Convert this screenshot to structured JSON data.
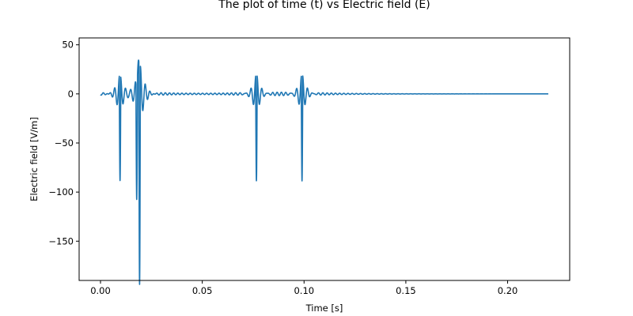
{
  "chart_data": {
    "type": "line",
    "title": "The plot of time (t) vs Electric field (E)",
    "xlabel": "Time [s]",
    "ylabel": "Electric field [V/m]",
    "xlim": [
      -0.0105,
      0.2305
    ],
    "ylim": [
      -190,
      57
    ],
    "xticks": [
      0.0,
      0.05,
      0.1,
      0.15,
      0.2
    ],
    "xtick_labels": [
      "0.00",
      "0.05",
      "0.10",
      "0.15",
      "0.20"
    ],
    "yticks": [
      -150,
      -100,
      -50,
      0,
      50
    ],
    "ytick_labels": [
      "−150",
      "−100",
      "−50",
      "0",
      "50"
    ],
    "grid": false,
    "legend": "none",
    "color": "#1f77b4",
    "series": [
      {
        "x_range": [
          0.0,
          0.22
        ],
        "pulses": [
          {
            "t": 0.0096,
            "peak": 20,
            "trough": -89
          },
          {
            "t": 0.0178,
            "peak": 30,
            "trough": -86
          },
          {
            "t": 0.0192,
            "peak": 45,
            "trough": -179
          },
          {
            "t": 0.0766,
            "peak": 21,
            "trough": -89
          },
          {
            "t": 0.099,
            "peak": 21,
            "trough": -89
          }
        ]
      }
    ]
  }
}
